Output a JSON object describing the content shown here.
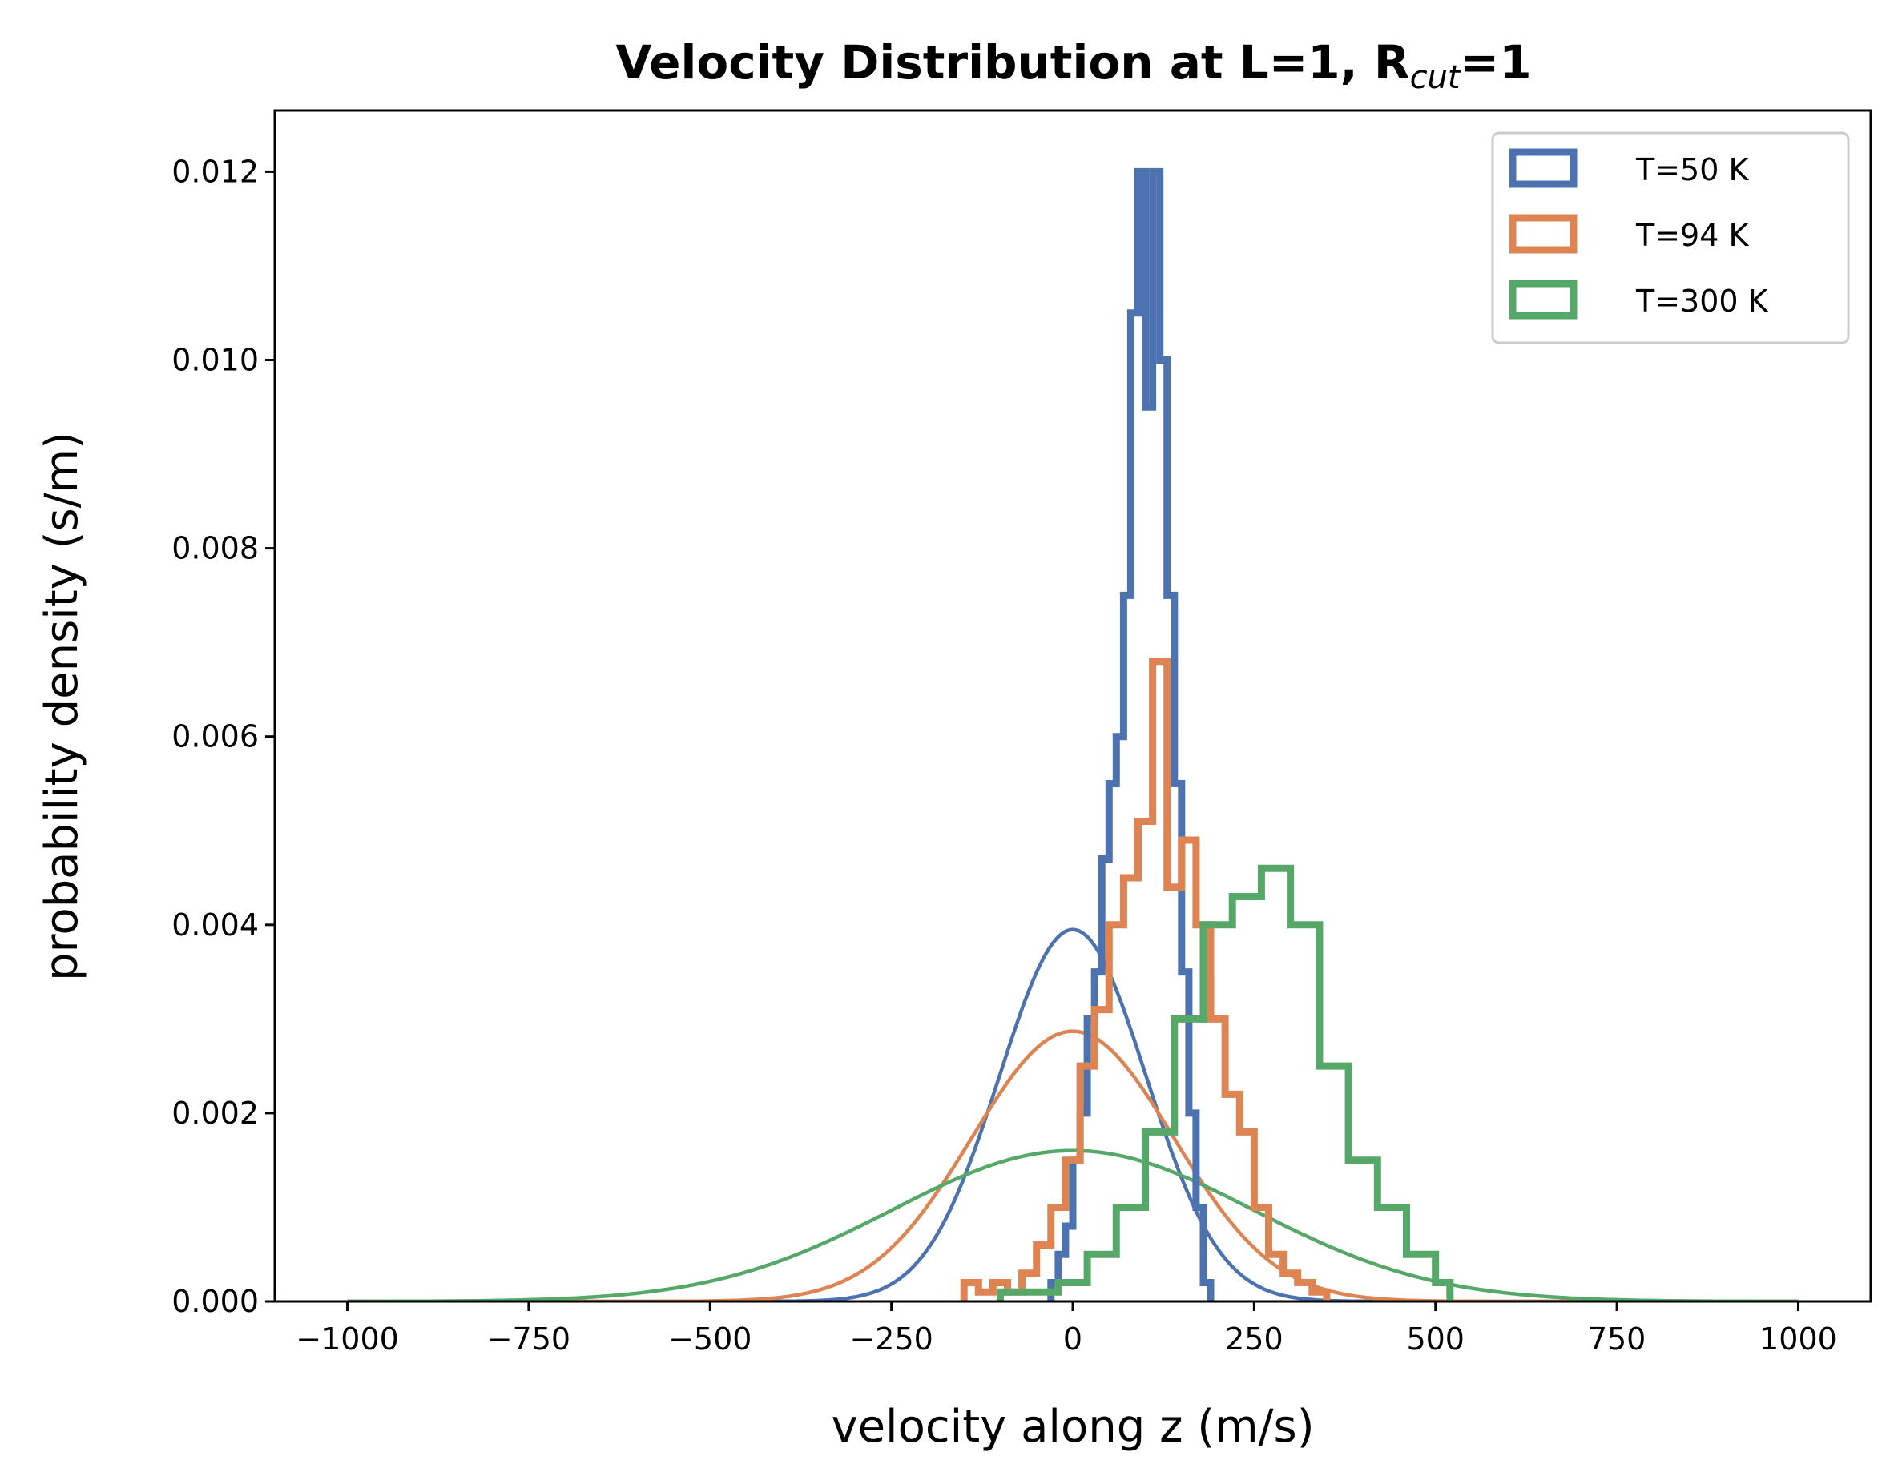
{
  "chart_data": {
    "type": "line",
    "title_main": "Velocity Distribution at L=1, R",
    "title_sub": "cut",
    "title_end": "=1",
    "xlabel": "velocity along z (m/s)",
    "ylabel": "probability density (s/m)",
    "xlim": [
      -1100,
      1100
    ],
    "ylim": [
      0,
      0.01265
    ],
    "xticks": [
      -1000,
      -750,
      -500,
      -250,
      0,
      250,
      500,
      750,
      1000
    ],
    "xtick_labels": [
      "−1000",
      "−750",
      "−500",
      "−250",
      "0",
      "250",
      "500",
      "750",
      "1000"
    ],
    "yticks": [
      0,
      0.002,
      0.004,
      0.006,
      0.008,
      0.01,
      0.012
    ],
    "ytick_labels": [
      "0.000",
      "0.002",
      "0.004",
      "0.006",
      "0.008",
      "0.010",
      "0.012"
    ],
    "grid": false,
    "legend_position": "top-right",
    "series": [
      {
        "name": "T=50 K",
        "color": "#4c72b0",
        "sigma": 101,
        "hist_edges": [
          -30,
          -20,
          -10,
          0,
          10,
          20,
          30,
          40,
          50,
          60,
          70,
          80,
          90,
          100,
          110,
          120,
          130,
          140,
          150,
          160,
          170,
          180,
          190
        ],
        "hist_values": [
          0.0002,
          0.0005,
          0.0008,
          0.0015,
          0.002,
          0.003,
          0.0035,
          0.0047,
          0.0055,
          0.006,
          0.0075,
          0.0105,
          0.012,
          0.0095,
          0.012,
          0.01,
          0.0075,
          0.0055,
          0.0035,
          0.002,
          0.001,
          0.0002
        ]
      },
      {
        "name": "T=94 K",
        "color": "#dd8452",
        "sigma": 139,
        "hist_edges": [
          -150,
          -130,
          -110,
          -90,
          -70,
          -50,
          -30,
          -10,
          10,
          30,
          50,
          70,
          90,
          110,
          130,
          150,
          170,
          190,
          210,
          230,
          250,
          270,
          290,
          310,
          330,
          350
        ],
        "hist_values": [
          0.0002,
          0.0001,
          0.0002,
          0.0001,
          0.0003,
          0.0006,
          0.001,
          0.0015,
          0.0025,
          0.0031,
          0.004,
          0.0045,
          0.0051,
          0.0068,
          0.0044,
          0.0049,
          0.004,
          0.003,
          0.0022,
          0.0018,
          0.001,
          0.0005,
          0.0003,
          0.0002,
          0.0001
        ]
      },
      {
        "name": "T=300 K",
        "color": "#55a868",
        "sigma": 249,
        "hist_edges": [
          -100,
          -60,
          -20,
          20,
          60,
          100,
          140,
          180,
          220,
          260,
          300,
          340,
          380,
          420,
          460,
          500,
          520
        ],
        "hist_values": [
          0.0001,
          0.0001,
          0.0002,
          0.0005,
          0.001,
          0.0018,
          0.003,
          0.004,
          0.0043,
          0.0046,
          0.004,
          0.0025,
          0.0015,
          0.001,
          0.0005,
          0.0002
        ]
      }
    ]
  }
}
